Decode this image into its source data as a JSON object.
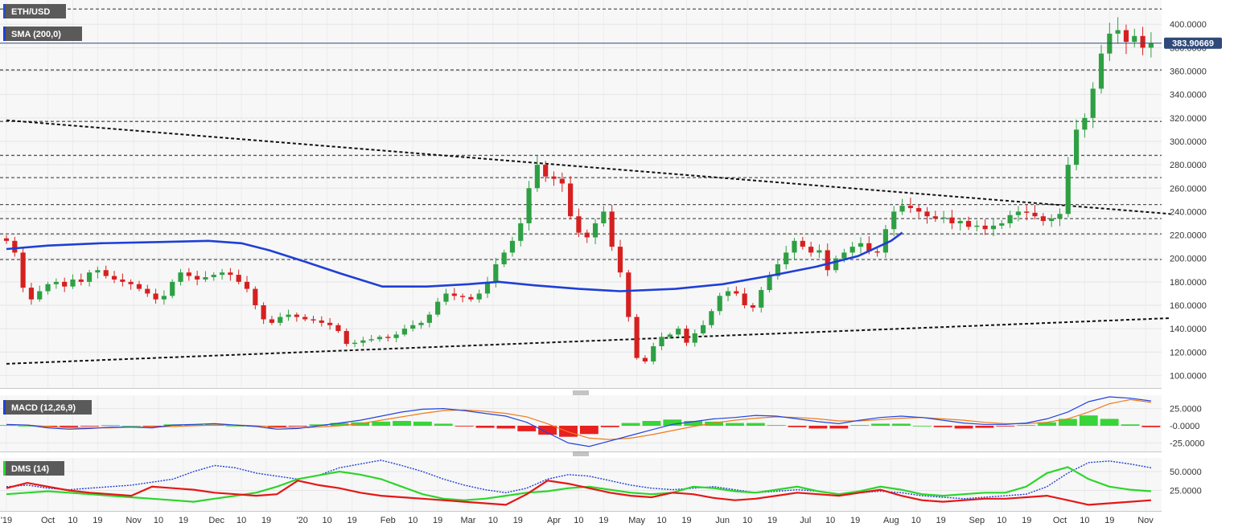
{
  "chart_data": [
    {
      "type": "candlestick",
      "symbol": "ETH/USD",
      "legend": [
        "ETH/USD",
        "SMA (200,0)"
      ],
      "ylim": [
        90,
        418
      ],
      "yticks": [
        "400.0000",
        "380.0000",
        "360.0000",
        "340.0000",
        "320.0000",
        "300.0000",
        "280.0000",
        "260.0000",
        "240.0000",
        "220.0000",
        "200.0000",
        "180.0000",
        "160.0000",
        "140.0000",
        "120.0000",
        "100.0000"
      ],
      "last_price_label": "383.90669",
      "last_price": 383.9,
      "horizontal_levels": [
        413,
        361,
        317,
        288,
        269,
        246,
        234,
        221,
        199
      ],
      "trendlines": [
        {
          "from": [
            "2019-09-16",
            318
          ],
          "to": [
            "2020-11-10",
            238
          ]
        },
        {
          "from": [
            "2019-09-16",
            110
          ],
          "to": [
            "2020-11-10",
            149
          ]
        }
      ],
      "sma_200": {
        "name": "SMA (200,0)",
        "x": [
          "2019-09-16",
          "2019-10-01",
          "2019-10-20",
          "2019-11-10",
          "2019-11-28",
          "2019-12-10",
          "2019-12-20",
          "2020-01-01",
          "2020-01-15",
          "2020-01-30",
          "2020-02-15",
          "2020-03-01",
          "2020-03-12",
          "2020-03-25",
          "2020-04-10",
          "2020-04-25",
          "2020-05-15",
          "2020-06-01",
          "2020-06-20",
          "2020-07-05",
          "2020-07-20",
          "2020-08-01",
          "2020-08-05"
        ],
        "y": [
          208,
          211,
          213,
          214,
          215,
          213,
          207,
          198,
          187,
          176,
          176,
          178,
          180,
          177,
          174,
          172,
          174,
          178,
          186,
          193,
          202,
          215,
          222
        ]
      },
      "candles": {
        "x_start": "2019-09-16",
        "x_step_days": 3,
        "close": [
          215,
          205,
          175,
          165,
          172,
          178,
          180,
          176,
          182,
          180,
          188,
          190,
          185,
          182,
          180,
          178,
          174,
          170,
          165,
          168,
          180,
          188,
          185,
          182,
          184,
          186,
          188,
          186,
          180,
          174,
          160,
          148,
          145,
          150,
          152,
          150,
          148,
          147,
          145,
          143,
          138,
          127,
          128,
          130,
          131,
          133,
          132,
          135,
          140,
          143,
          145,
          152,
          163,
          170,
          168,
          167,
          165,
          170,
          180,
          195,
          205,
          215,
          230,
          260,
          280,
          270,
          268,
          264,
          236,
          222,
          218,
          230,
          240,
          210,
          188,
          150,
          115,
          112,
          125,
          133,
          135,
          140,
          128,
          136,
          143,
          155,
          168,
          172,
          170,
          160,
          158,
          173,
          185,
          195,
          205,
          215,
          210,
          205,
          207,
          190,
          200,
          205,
          210,
          213,
          206,
          205,
          225,
          240,
          245,
          243,
          240,
          236,
          234,
          235,
          230,
          232,
          227,
          228,
          225,
          228,
          230,
          237,
          240,
          239,
          236,
          232,
          234,
          238,
          280,
          310,
          320,
          345,
          375,
          392,
          395,
          385,
          390,
          380,
          384
        ]
      },
      "xticks": [
        "'19",
        "Oct",
        "10",
        "19",
        "Nov",
        "10",
        "19",
        "Dec",
        "10",
        "19",
        "'20",
        "10",
        "19",
        "Feb",
        "10",
        "19",
        "Mar",
        "10",
        "19",
        "Apr",
        "10",
        "19",
        "May",
        "10",
        "19",
        "Jun",
        "10",
        "19",
        "Jul",
        "10",
        "19",
        "Aug",
        "10",
        "19",
        "Sep",
        "10",
        "19",
        "Oct",
        "10",
        "19",
        "Nov"
      ],
      "xtick_dates": [
        "2019-09-16",
        "2019-10-01",
        "2019-10-10",
        "2019-10-19",
        "2019-11-01",
        "2019-11-10",
        "2019-11-19",
        "2019-12-01",
        "2019-12-10",
        "2019-12-19",
        "2020-01-01",
        "2020-01-10",
        "2020-01-19",
        "2020-02-01",
        "2020-02-10",
        "2020-02-19",
        "2020-03-01",
        "2020-03-10",
        "2020-03-19",
        "2020-04-01",
        "2020-04-10",
        "2020-04-19",
        "2020-05-01",
        "2020-05-10",
        "2020-05-19",
        "2020-06-01",
        "2020-06-10",
        "2020-06-19",
        "2020-07-01",
        "2020-07-10",
        "2020-07-19",
        "2020-08-01",
        "2020-08-10",
        "2020-08-19",
        "2020-09-01",
        "2020-09-10",
        "2020-09-19",
        "2020-10-01",
        "2020-10-10",
        "2020-10-19",
        "2020-11-01"
      ]
    },
    {
      "type": "line",
      "indicator": "MACD (12,26,9)",
      "ylim": [
        -35,
        42
      ],
      "yticks": [
        "25.0000",
        "-0.0000",
        "-25.0000"
      ],
      "ytick_values": [
        25,
        0,
        -25
      ],
      "series": [
        {
          "values": [
            2,
            1,
            -3,
            -5,
            -4,
            -2,
            -2,
            -3,
            1,
            2,
            3,
            1,
            -1,
            -5,
            -4,
            0,
            4,
            8,
            14,
            20,
            24,
            25,
            22,
            18,
            14,
            5,
            -10,
            -25,
            -30,
            -22,
            -14,
            -6,
            2,
            6,
            10,
            12,
            15,
            14,
            10,
            6,
            3,
            8,
            12,
            14,
            12,
            8,
            4,
            2,
            2,
            4,
            10,
            20,
            35,
            42,
            40,
            36
          ]
        },
        {
          "values": [
            1,
            1,
            -1,
            -3,
            -3,
            -3,
            -2,
            -2,
            -1,
            0,
            1,
            1,
            0,
            -2,
            -3,
            -2,
            0,
            3,
            8,
            13,
            18,
            22,
            23,
            21,
            18,
            13,
            3,
            -9,
            -18,
            -20,
            -18,
            -13,
            -7,
            -1,
            4,
            8,
            11,
            13,
            12,
            10,
            7,
            7,
            9,
            11,
            12,
            10,
            8,
            5,
            3,
            3,
            5,
            10,
            20,
            32,
            38,
            34
          ]
        }
      ],
      "histogram": [
        1,
        0,
        -2,
        -2,
        -1,
        1,
        0,
        -1,
        2,
        2,
        2,
        0,
        -1,
        -3,
        -1,
        2,
        4,
        5,
        6,
        7,
        6,
        3,
        -1,
        -3,
        -4,
        -8,
        -13,
        -16,
        -12,
        -2,
        4,
        7,
        9,
        7,
        6,
        4,
        4,
        1,
        -2,
        -4,
        -4,
        1,
        3,
        3,
        0,
        -2,
        -4,
        -3,
        -1,
        1,
        5,
        10,
        15,
        10,
        2,
        -2
      ]
    },
    {
      "type": "line",
      "indicator": "DMS (14)",
      "ylim": [
        0,
        66
      ],
      "yticks": [
        "50.0000",
        "25.0000"
      ],
      "ytick_values": [
        50,
        25
      ],
      "series": [
        {
          "values": [
            28,
            35,
            30,
            25,
            22,
            20,
            18,
            30,
            28,
            26,
            22,
            20,
            18,
            20,
            38,
            32,
            28,
            22,
            18,
            16,
            14,
            12,
            10,
            8,
            6,
            20,
            38,
            34,
            28,
            22,
            18,
            16,
            22,
            20,
            15,
            12,
            14,
            18,
            22,
            20,
            18,
            22,
            26,
            18,
            12,
            10,
            12,
            14,
            14,
            16,
            18,
            12,
            6,
            8,
            10,
            12
          ]
        },
        {
          "values": [
            20,
            22,
            24,
            22,
            20,
            18,
            16,
            14,
            12,
            10,
            14,
            18,
            22,
            30,
            40,
            45,
            50,
            46,
            40,
            30,
            20,
            14,
            12,
            14,
            18,
            22,
            24,
            28,
            30,
            26,
            22,
            20,
            22,
            30,
            28,
            24,
            22,
            26,
            30,
            24,
            20,
            24,
            30,
            26,
            20,
            18,
            20,
            22,
            22,
            30,
            48,
            56,
            40,
            30,
            26,
            24
          ]
        },
        {
          "values": [
            30,
            32,
            28,
            26,
            28,
            30,
            32,
            36,
            40,
            50,
            58,
            55,
            48,
            44,
            40,
            45,
            55,
            60,
            65,
            58,
            50,
            40,
            32,
            26,
            22,
            28,
            40,
            46,
            44,
            38,
            32,
            28,
            26,
            28,
            30,
            26,
            22,
            24,
            26,
            24,
            20,
            22,
            24,
            22,
            18,
            16,
            14,
            16,
            18,
            20,
            30,
            48,
            62,
            64,
            60,
            55
          ]
        }
      ]
    }
  ]
}
